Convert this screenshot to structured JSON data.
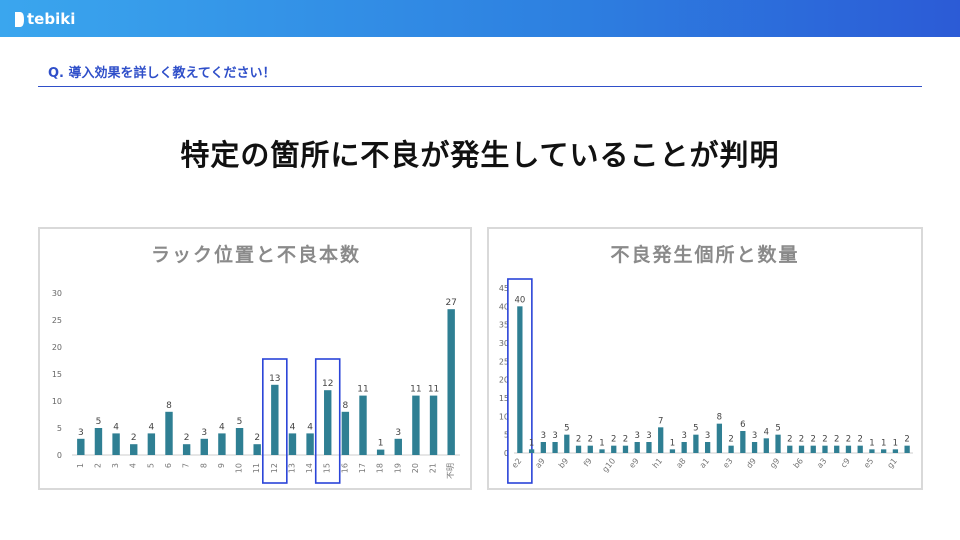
{
  "header": {
    "logo_text": "tebiki"
  },
  "question": "Q. 導入効果を詳しく教えてください！",
  "headline": "特定の箇所に不良が発生していることが判明",
  "colors": {
    "bar": "#2f7f93",
    "highlight": "#2a44d8",
    "title": "#8a8a8a",
    "axis": "#999999"
  },
  "chart_data": [
    {
      "type": "bar",
      "title": "ラック位置と不良本数",
      "categories": [
        "1",
        "2",
        "3",
        "4",
        "5",
        "6",
        "7",
        "8",
        "9",
        "10",
        "11",
        "12",
        "13",
        "14",
        "15",
        "16",
        "17",
        "18",
        "19",
        "20",
        "21",
        "不明"
      ],
      "values": [
        3,
        5,
        4,
        2,
        4,
        8,
        2,
        3,
        4,
        5,
        2,
        13,
        4,
        4,
        12,
        8,
        11,
        1,
        3,
        11,
        11,
        27
      ],
      "ylim": [
        0,
        30
      ],
      "yticks": [
        0,
        5,
        10,
        15,
        20,
        25,
        30
      ],
      "highlighted": [
        "12",
        "15"
      ]
    },
    {
      "type": "bar",
      "title": "不良発生個所と数量",
      "categories": [
        "e2",
        "",
        "a9",
        "",
        "b9",
        "",
        "f9",
        "",
        "g10",
        "",
        "e9",
        "",
        "h1",
        "",
        "a8",
        "",
        "a1",
        "",
        "e3",
        "",
        "d9",
        "",
        "g9",
        "",
        "b6",
        "",
        "a3",
        "",
        "c9",
        "",
        "e5",
        "",
        "g1",
        ""
      ],
      "values": [
        40,
        1,
        3,
        3,
        5,
        2,
        2,
        1,
        2,
        2,
        3,
        3,
        7,
        1,
        3,
        5,
        3,
        8,
        2,
        6,
        3,
        4,
        5,
        2,
        2,
        2,
        2,
        2,
        2,
        2,
        1,
        1,
        1,
        2
      ],
      "ylim": [
        0,
        45
      ],
      "yticks": [
        0,
        5,
        10,
        15,
        20,
        25,
        30,
        35,
        40,
        45
      ],
      "highlighted": [
        "e2"
      ]
    }
  ]
}
